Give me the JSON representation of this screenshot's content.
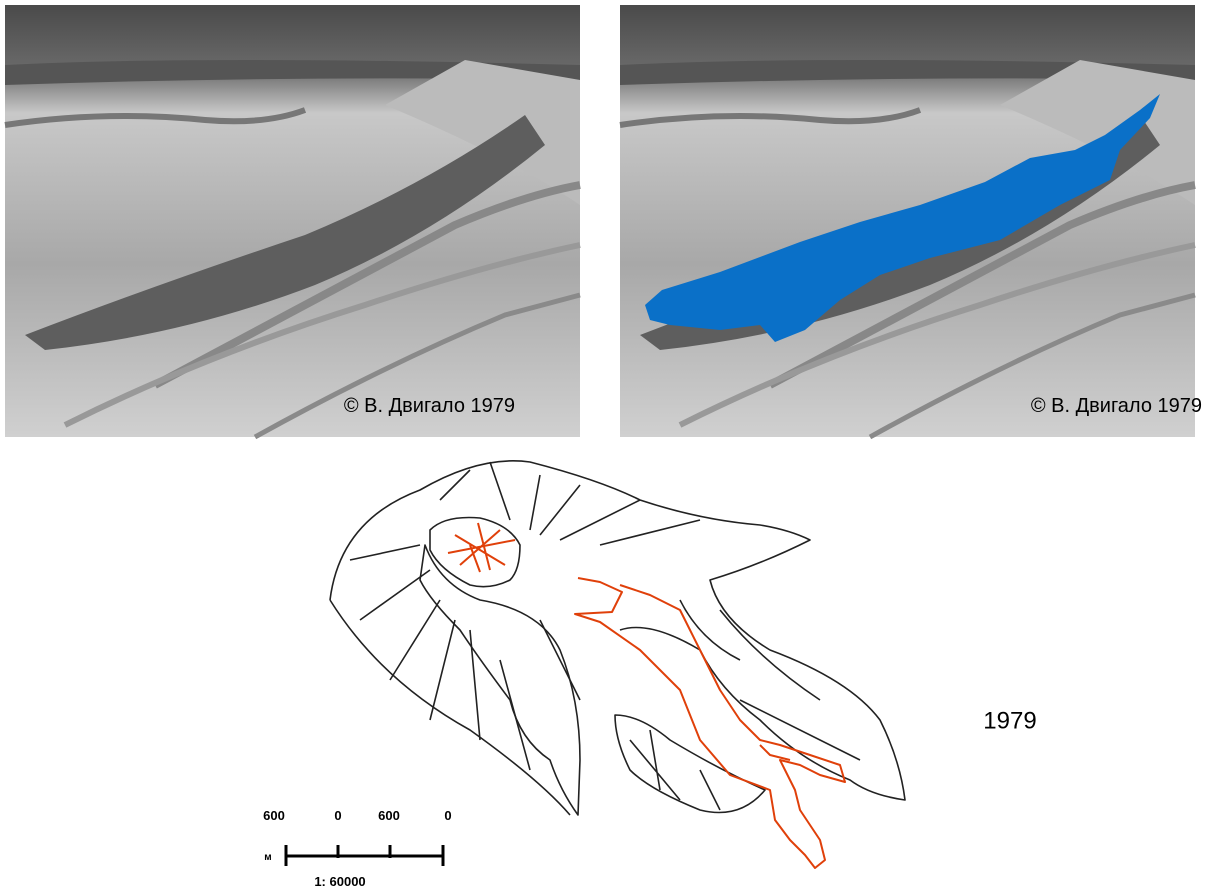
{
  "photos": [
    {
      "caption": "© В. Двигало 1979"
    },
    {
      "caption": "© В. Двигало 1979"
    }
  ],
  "map": {
    "year": "1979",
    "scale": {
      "ticks": [
        "600",
        "0",
        "600",
        "0"
      ],
      "unit": "м",
      "ratio": "1: 60000"
    }
  }
}
